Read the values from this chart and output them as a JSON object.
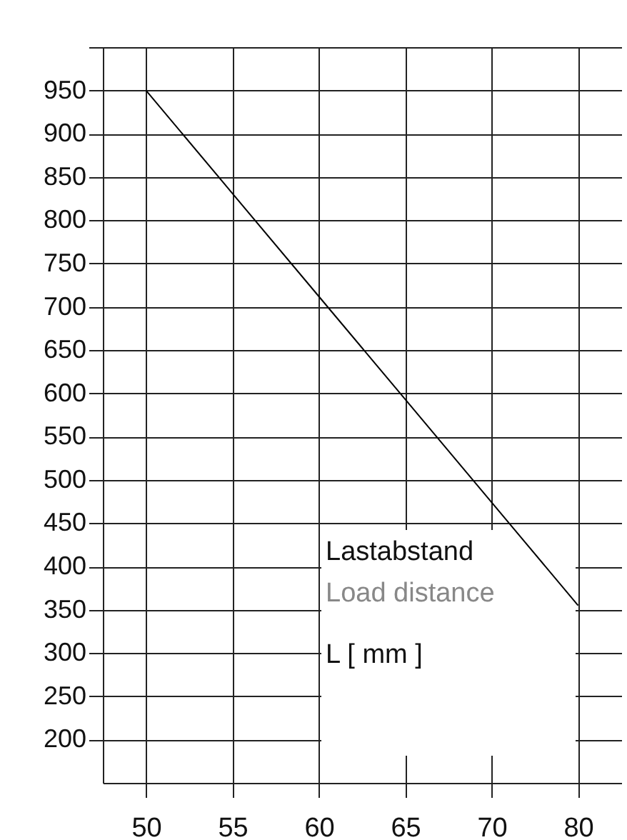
{
  "chart_data": {
    "type": "line",
    "categories": [
      "50",
      "55",
      "60",
      "65",
      "70",
      "80"
    ],
    "values": [
      950,
      831,
      712,
      593,
      474,
      355
    ],
    "color": "#000000",
    "ylim": [
      150,
      1000
    ],
    "yticks": [
      200,
      250,
      300,
      350,
      400,
      450,
      500,
      550,
      600,
      650,
      700,
      750,
      800,
      850,
      900,
      950,
      {
        "value": 1000,
        "label": null
      }
    ],
    "grid": true,
    "xlabel": "L [ mm ]",
    "annotations": [
      "Lastabstand",
      "Load distance"
    ]
  }
}
